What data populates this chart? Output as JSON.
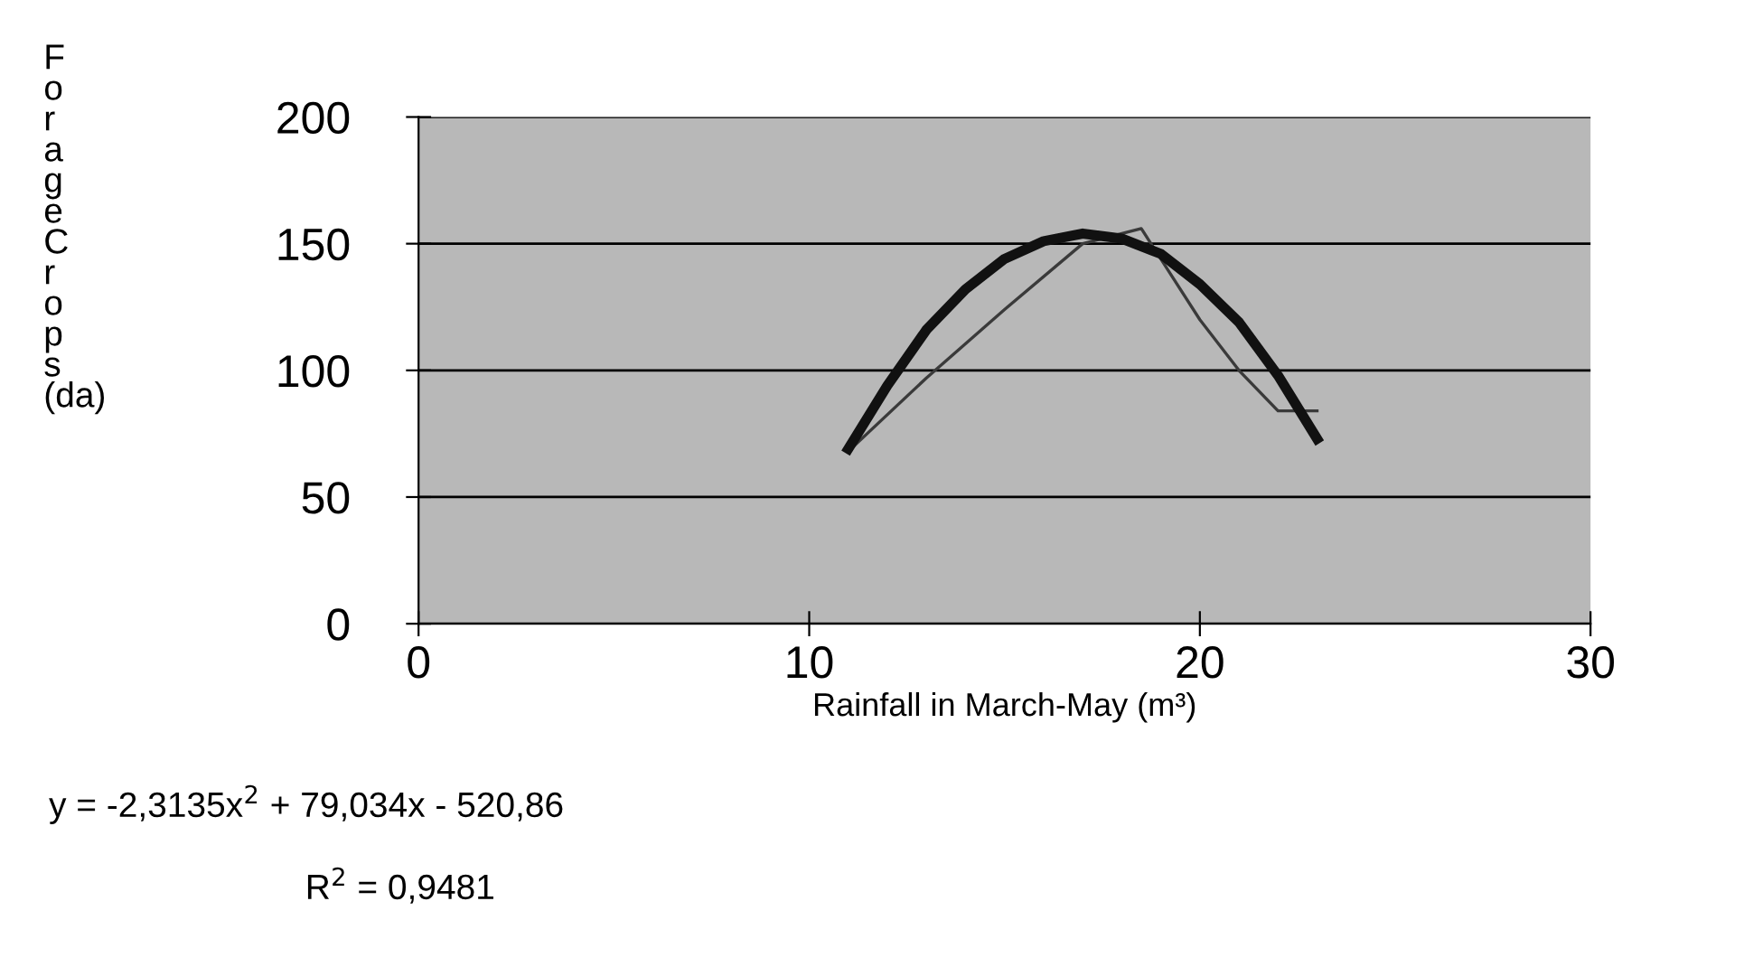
{
  "chart_data": {
    "type": "line",
    "xlabel": "Rainfall in March-May (m³)",
    "ylabel": "ForageCrops (da)",
    "xlim": [
      0,
      30
    ],
    "xticks": [
      0,
      10,
      20,
      30
    ],
    "ylim": [
      0,
      200
    ],
    "yticks": [
      0,
      50,
      100,
      150,
      200
    ],
    "grid": "y",
    "legend": false,
    "marker": "none",
    "line_style": "solid",
    "series": [
      {
        "color": "#3a3a3a",
        "x": [
          11,
          13,
          15,
          17,
          18.5,
          20,
          21,
          22,
          23
        ],
        "values": [
          68,
          97,
          124,
          150,
          156,
          120,
          100,
          84,
          84
        ]
      },
      {
        "color": "#111111",
        "x": [
          11,
          12,
          13,
          14,
          15,
          16,
          17,
          18,
          19,
          20,
          21,
          22,
          23
        ],
        "values": [
          69,
          94,
          116,
          132,
          144,
          151,
          154,
          152,
          146,
          134,
          119,
          98,
          73
        ]
      }
    ],
    "annotations": [
      "y = -2,3135x$^{2}$ + 79,034x - 520,86",
      "R$^{2}$ = 0,9481"
    ]
  }
}
